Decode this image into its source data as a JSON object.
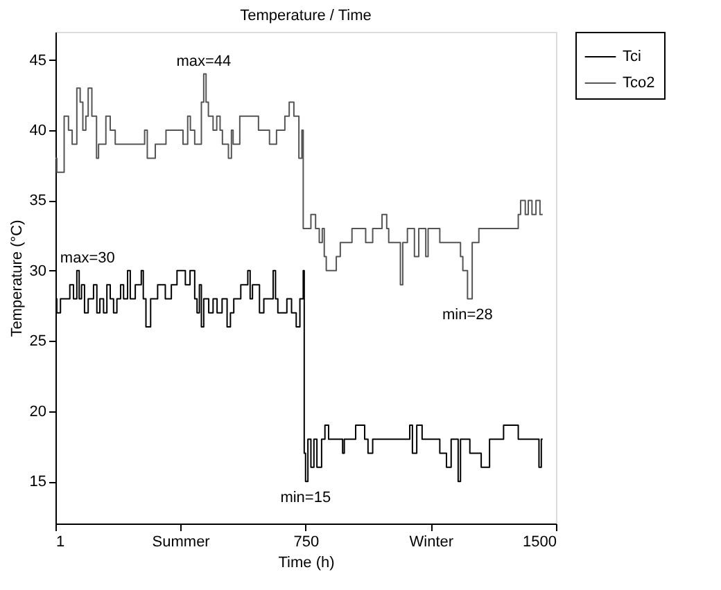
{
  "chart_data": {
    "type": "step",
    "title": "Temperature / Time",
    "xlabel": "Time (h)",
    "ylabel": "Temperature (°C)",
    "xlim": [
      1,
      1500
    ],
    "xticks": [
      1,
      {
        "value": 375,
        "label": "Summer"
      },
      750,
      {
        "value": 1125,
        "label": "Winter"
      },
      1500
    ],
    "ylim": [
      12,
      47
    ],
    "yticks": [
      15,
      20,
      25,
      30,
      35,
      40,
      45
    ],
    "grid": false,
    "legend": "top right",
    "series": [
      {
        "name": "Tci",
        "color": "#000000",
        "x": [
          1,
          5,
          16,
          44,
          55,
          65,
          72,
          79,
          88,
          99,
          115,
          125,
          134,
          145,
          155,
          165,
          175,
          185,
          196,
          205,
          217,
          225,
          240,
          258,
          264,
          272,
          286,
          307,
          330,
          348,
          365,
          390,
          404,
          418,
          425,
          432,
          438,
          445,
          460,
          473,
          485,
          500,
          515,
          525,
          535,
          556,
          577,
          584,
          591,
          612,
          625,
          653,
          660,
          667,
          694,
          708,
          722,
          733,
          743,
          746,
          750,
          757,
          766,
          775,
          784,
          798,
          808,
          819,
          861,
          866,
          900,
          927,
          937,
          951,
          1062,
          1070,
          1083,
          1099,
          1152,
          1172,
          1186,
          1207,
          1214,
          1242,
          1276,
          1301,
          1343,
          1387,
          1449,
          1456,
          1460
        ],
        "values": [
          28,
          27,
          28,
          29,
          28,
          30,
          28,
          29,
          27,
          28,
          29,
          27,
          28,
          27,
          29,
          28,
          27,
          28,
          29,
          28,
          30,
          28,
          29,
          30,
          28,
          26,
          28,
          29,
          28,
          29,
          30,
          29,
          30,
          28,
          27,
          29,
          26,
          28,
          27,
          28,
          27,
          28,
          26,
          27,
          28,
          29,
          30,
          28,
          29,
          27,
          28,
          30,
          28,
          27,
          28,
          27,
          26,
          28,
          30,
          17,
          15,
          18,
          16,
          18,
          16,
          18,
          19,
          18,
          17,
          18,
          19,
          18,
          17,
          18,
          19,
          17,
          19,
          18,
          17,
          16,
          18,
          15,
          18,
          17,
          16,
          18,
          19,
          18,
          16,
          18,
          18
        ]
      },
      {
        "name": "Tco2",
        "color": "#555555",
        "x": [
          1,
          5,
          27,
          40,
          51,
          65,
          75,
          83,
          92,
          99,
          110,
          124,
          130,
          152,
          165,
          180,
          268,
          276,
          300,
          332,
          383,
          397,
          405,
          418,
          438,
          445,
          452,
          459,
          473,
          484,
          494,
          501,
          519,
          528,
          533,
          553,
          609,
          642,
          663,
          688,
          701,
          715,
          730,
          739,
          743,
          766,
          780,
          791,
          800,
          806,
          812,
          842,
          854,
          889,
          930,
          951,
          979,
          993,
          999,
          1034,
          1041,
          1055,
          1076,
          1089,
          1110,
          1117,
          1152,
          1214,
          1221,
          1235,
          1249,
          1269,
          1387,
          1394,
          1408,
          1417,
          1428,
          1440,
          1452,
          1460
        ],
        "values": [
          38,
          37,
          41,
          40,
          39,
          43,
          42,
          40,
          41,
          43,
          41,
          38,
          39,
          41,
          40,
          39,
          40,
          38,
          39,
          40,
          39,
          41,
          40,
          39,
          42,
          44,
          42,
          41,
          40,
          41,
          40,
          39,
          38,
          40,
          39,
          41,
          40,
          39,
          40,
          41,
          42,
          41,
          38,
          40,
          33,
          34,
          33,
          32,
          33,
          31,
          30,
          31,
          32,
          33,
          32,
          33,
          34,
          33,
          32,
          29,
          32,
          33,
          31,
          33,
          31,
          33,
          32,
          31,
          30,
          28,
          32,
          33,
          34,
          35,
          34,
          35,
          34,
          35,
          34,
          34
        ]
      }
    ],
    "annotations": [
      {
        "text": "max=44",
        "x": 445,
        "y": 44
      },
      {
        "text": "max=30",
        "x": 65,
        "y": 30
      },
      {
        "text": "min=15",
        "x": 750,
        "y": 15
      },
      {
        "text": "min=28",
        "x": 1235,
        "y": 28
      }
    ]
  }
}
